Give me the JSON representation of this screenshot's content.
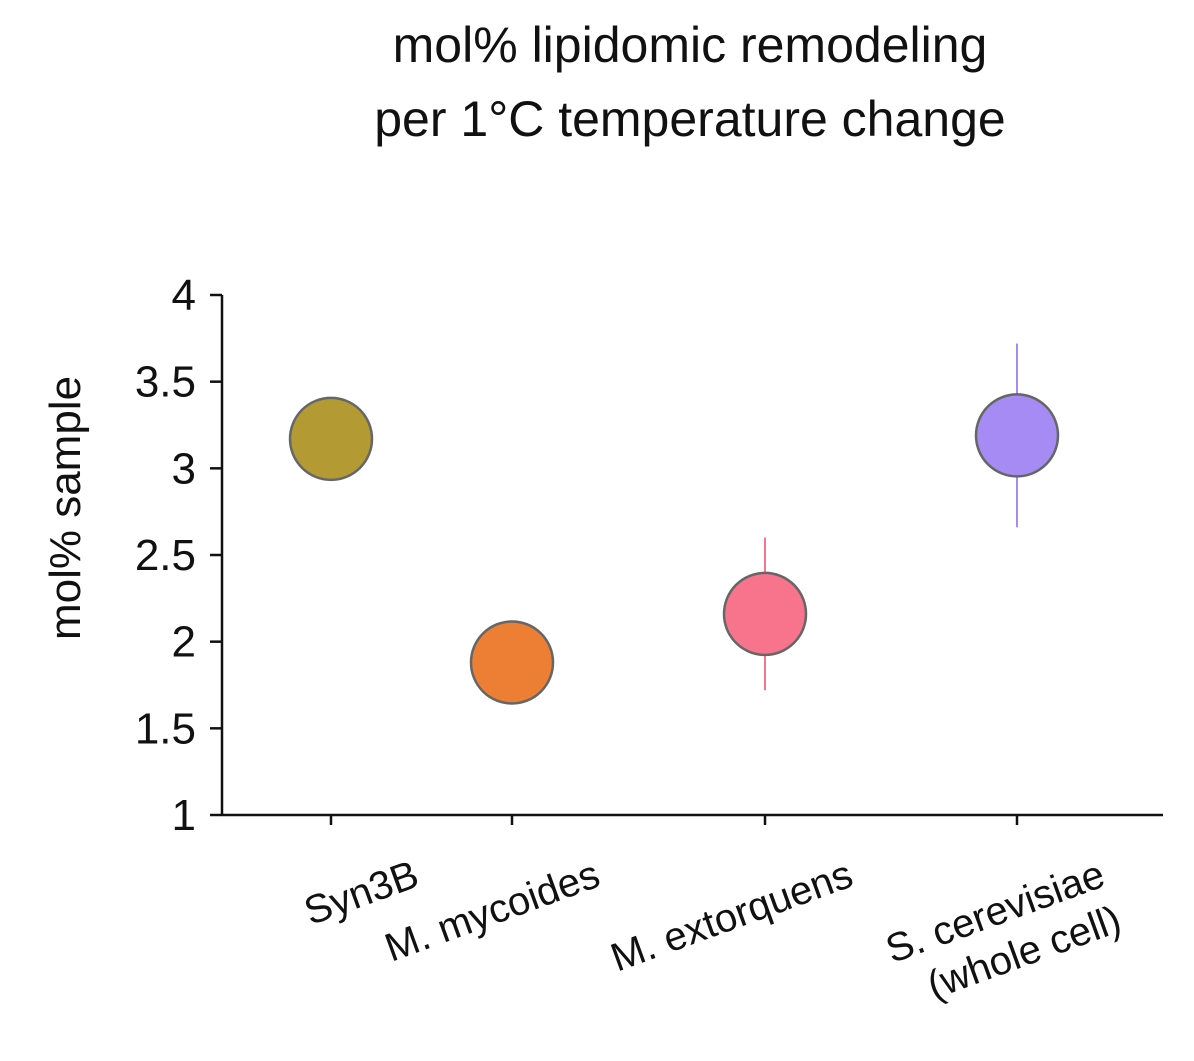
{
  "chart_data": {
    "type": "scatter",
    "title": [
      "mol% lipidomic remodeling",
      "per 1°C temperature change"
    ],
    "xlabel": "",
    "ylabel": "mol% sample",
    "ylim": [
      1,
      4
    ],
    "yticks": [
      1,
      1.5,
      2,
      2.5,
      3,
      3.5,
      4
    ],
    "ytick_labels": [
      "1",
      "1.5",
      "2",
      "2.5",
      "3",
      "3.5",
      "4"
    ],
    "grid": false,
    "categories": [
      [
        "Syn3B"
      ],
      [
        "M. mycoides"
      ],
      [
        "M. extorquens"
      ],
      [
        "S. cerevisiae",
        "(whole cell)"
      ]
    ],
    "points": [
      {
        "value": 3.17,
        "err_low": 3.17,
        "err_high": 3.17,
        "color": "#B39A33"
      },
      {
        "value": 1.88,
        "err_low": 1.88,
        "err_high": 1.88,
        "color": "#EC7F33"
      },
      {
        "value": 2.16,
        "err_low": 1.72,
        "err_high": 2.6,
        "color": "#F7748C"
      },
      {
        "value": 3.19,
        "err_low": 2.66,
        "err_high": 3.72,
        "color": "#A68BF4"
      }
    ],
    "marker_edge_color": "#666666"
  }
}
